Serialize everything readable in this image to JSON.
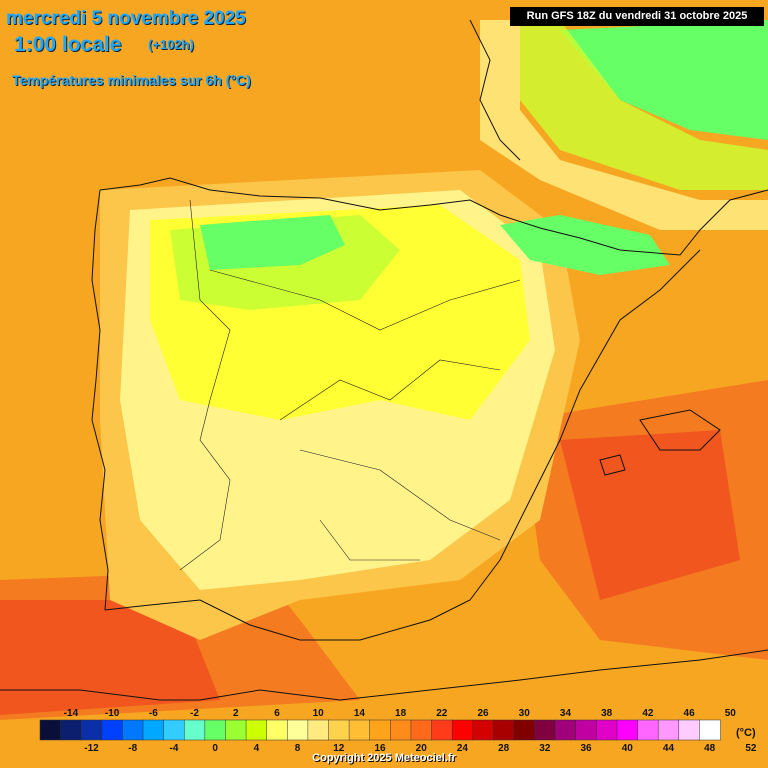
{
  "header": {
    "date_line": "mercredi 5 novembre 2025",
    "time_line": "1:00 locale",
    "offset": "(+102h)",
    "parameter": "Températures minimales sur 6h (°C)"
  },
  "run_info": "Run GFS 18Z du vendredi 31 octobre 2025",
  "copyright": "Copyright 2025 Meteociel.fr",
  "legend": {
    "unit": "(°C)",
    "top_labels": [
      "-14",
      "-10",
      "-6",
      "-2",
      "2",
      "6",
      "10",
      "14",
      "18",
      "22",
      "26",
      "30",
      "34",
      "38",
      "42",
      "46",
      "50"
    ],
    "bottom_labels": [
      "-12",
      "-8",
      "-4",
      "0",
      "4",
      "8",
      "12",
      "16",
      "20",
      "24",
      "28",
      "32",
      "36",
      "40",
      "44",
      "48",
      "52"
    ],
    "colors": [
      "#0a0f3a",
      "#0c1f6e",
      "#0a2fa8",
      "#0040ff",
      "#0078ff",
      "#00a8ff",
      "#33ccff",
      "#66ffcc",
      "#66ff66",
      "#99ff33",
      "#ccff00",
      "#ffff66",
      "#ffff99",
      "#ffeb80",
      "#ffd24d",
      "#ffbe33",
      "#ffa31a",
      "#ff8c1a",
      "#ff6a1a",
      "#ff3b1a",
      "#ff0000",
      "#d40000",
      "#a80000",
      "#800000",
      "#800040",
      "#a0007a",
      "#c000a0",
      "#e000c8",
      "#ff00ff",
      "#ff66ff",
      "#ff99ff",
      "#ffccff",
      "#ffffff"
    ]
  },
  "palette": {
    "orange": "#f7a621",
    "light_orange": "#fbc64a",
    "pale_yellow": "#fff38a",
    "yellow": "#ffff33",
    "lime": "#ccff33",
    "green": "#66ff66",
    "deep_orange": "#f47b20",
    "red_orange": "#f0561e"
  }
}
